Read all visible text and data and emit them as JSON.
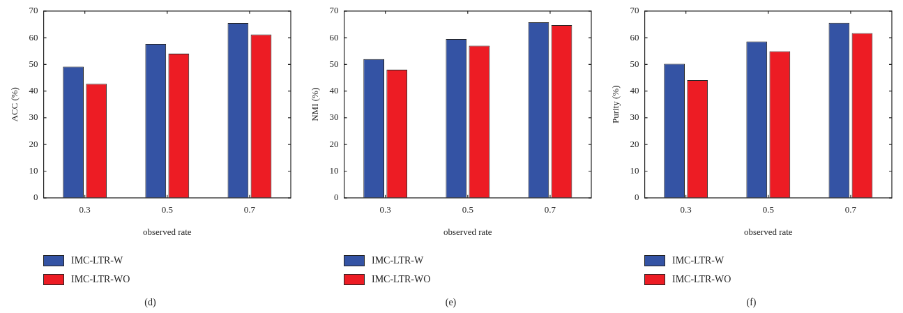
{
  "chart_data": [
    {
      "type": "bar",
      "categories": [
        "0.3",
        "0.5",
        "0.7"
      ],
      "xlabel": "observed rate",
      "ylabel": "ACC (%)",
      "ylim": [
        0,
        70
      ],
      "yticks": [
        0,
        10,
        20,
        30,
        40,
        50,
        60,
        70
      ],
      "grid": false,
      "legend": "bottom left",
      "annotations": [
        "(d)"
      ],
      "series": [
        {
          "name": "IMC-LTR-W",
          "color": "#3453a4",
          "values": [
            49.2,
            57.7,
            65.5
          ]
        },
        {
          "name": "IMC-LTR-WO",
          "color": "#ed1c24",
          "values": [
            42.7,
            54.0,
            61.2
          ]
        }
      ]
    },
    {
      "type": "bar",
      "categories": [
        "0.3",
        "0.5",
        "0.7"
      ],
      "xlabel": "observed rate",
      "ylabel": "NMI (%)",
      "ylim": [
        0,
        70
      ],
      "yticks": [
        0,
        10,
        20,
        30,
        40,
        50,
        60,
        70
      ],
      "grid": false,
      "legend": "bottom left",
      "annotations": [
        "(e)"
      ],
      "series": [
        {
          "name": "IMC-LTR-W",
          "color": "#3453a4",
          "values": [
            52.0,
            59.5,
            65.8
          ]
        },
        {
          "name": "IMC-LTR-WO",
          "color": "#ed1c24",
          "values": [
            48.0,
            57.0,
            64.7
          ]
        }
      ]
    },
    {
      "type": "bar",
      "categories": [
        "0.3",
        "0.5",
        "0.7"
      ],
      "xlabel": "observed rate",
      "ylabel": "Purity (%)",
      "ylim": [
        0,
        70
      ],
      "yticks": [
        0,
        10,
        20,
        30,
        40,
        50,
        60,
        70
      ],
      "grid": false,
      "legend": "bottom left",
      "annotations": [
        "(f)"
      ],
      "series": [
        {
          "name": "IMC-LTR-W",
          "color": "#3453a4",
          "values": [
            50.2,
            58.6,
            65.6
          ]
        },
        {
          "name": "IMC-LTR-WO",
          "color": "#ed1c24",
          "values": [
            44.1,
            54.9,
            61.7
          ]
        }
      ]
    }
  ]
}
